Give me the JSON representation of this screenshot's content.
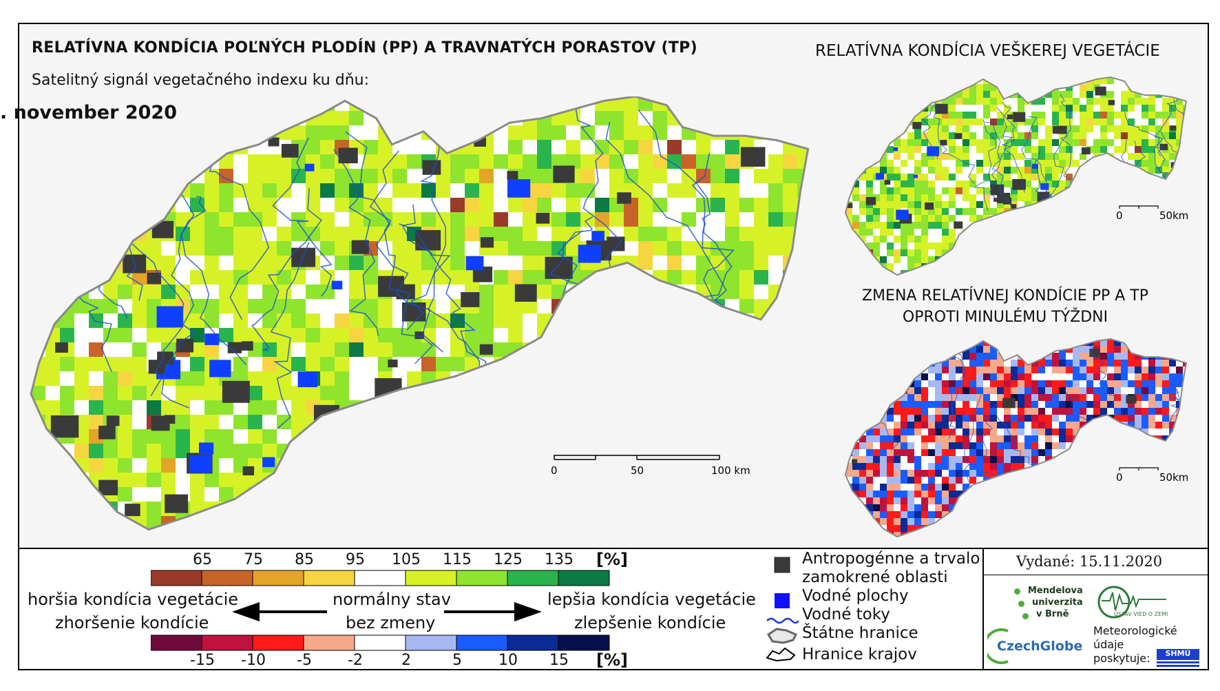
{
  "main_title": "RELATÍVNA KONDÍCIA POĽNÝCH PLODÍN (PP) A TRAVNATÝCH PORASTOV (TP)",
  "subtitle": "Satelitný signál vegetačného indexu ku dňu:",
  "date": ". november 2020",
  "right_top_title": "RELATÍVNA KONDÍCIA VEŠKEREJ VEGETÁCIE",
  "right_bottom_title": [
    "ZMENA RELATÍVNEJ KONDÍCIE PP A TP",
    "OPROTI MINULÉMU TÝŽDNI"
  ],
  "scale_main": {
    "labels": [
      "0",
      "50",
      "100 km"
    ]
  },
  "scale_small": {
    "labels": [
      "0",
      "50km"
    ]
  },
  "legend_condition": {
    "ticks": [
      "65",
      "75",
      "85",
      "95",
      "105",
      "115",
      "125",
      "135"
    ],
    "unit": "[%]",
    "colors": [
      "#9a3b2a",
      "#c8642a",
      "#e4a428",
      "#f6d540",
      "#ffffff",
      "#d6f226",
      "#8fe42e",
      "#2ab44e",
      "#0c7a44"
    ]
  },
  "legend_change": {
    "ticks": [
      "-15",
      "-10",
      "-5",
      "-2",
      "2",
      "5",
      "10",
      "15"
    ],
    "unit": "[%]",
    "colors": [
      "#6e0a3c",
      "#c0123c",
      "#ff1a1a",
      "#f5a88a",
      "#ffffff",
      "#a6b8f2",
      "#1a5cff",
      "#0a2a96",
      "#06104c"
    ]
  },
  "arrows": {
    "left_top": "horšia kondícia vegetácie",
    "left_bottom": "zhoršenie kondície",
    "center_top": "normálny stav",
    "center_bottom": "bez zmeny",
    "right_top": "lepšia kondícia vegetácie",
    "right_bottom": "zlepšenie kondície"
  },
  "symbols": [
    {
      "icon": "dark-square-icon",
      "label": "Antropogénne a trvalo"
    },
    {
      "icon": "",
      "label": "zamokrené oblasti"
    },
    {
      "icon": "blue-square-icon",
      "label": "Vodné plochy"
    },
    {
      "icon": "river-line-icon",
      "label": "Vodné toky"
    },
    {
      "icon": "state-border-icon",
      "label": "Štátne hranice"
    },
    {
      "icon": "region-border-icon",
      "label": "Hranice krajov"
    }
  ],
  "issued": "Vydané: 15.11.2020",
  "logos": {
    "mendelu": [
      "Mendelova",
      "univerzita",
      "v Brně"
    ],
    "czechglobe": "CzechGlobe",
    "uvz": "ÚSTAV VIED O ZEMI",
    "meteo": [
      "Meteorologické",
      "údaje",
      "poskytuje:"
    ],
    "shmu": "SHMÚ"
  },
  "map_legend_colors": {
    "water": "#1040ff",
    "urban": "#3a3a3a",
    "river": "#1a4fd0",
    "border": "#9a9a9a"
  }
}
